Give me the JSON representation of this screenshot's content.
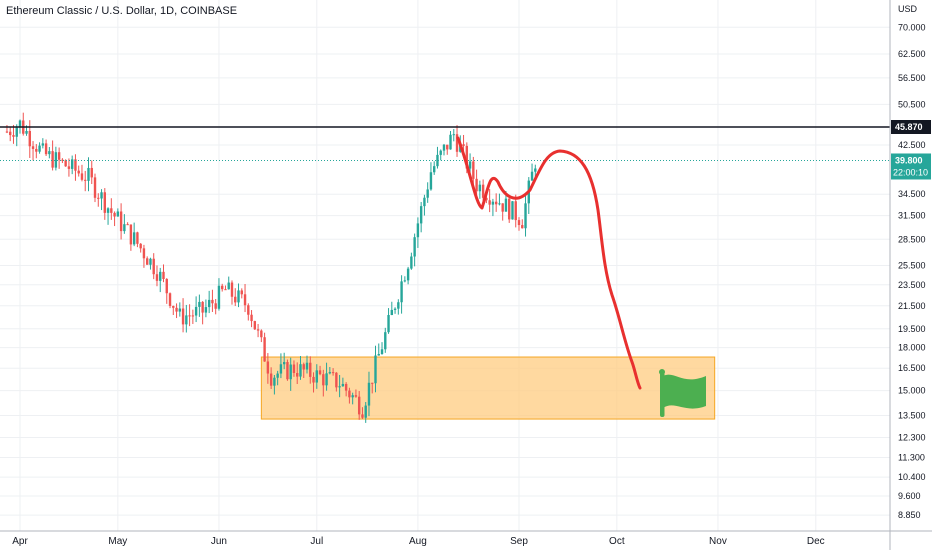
{
  "header": {
    "title": "Ethereum Classic / U.S. Dollar, 1D, COINBASE"
  },
  "chart_data": {
    "type": "candlestick",
    "title": "Ethereum Classic / U.S. Dollar, 1D, COINBASE",
    "currency": "USD",
    "scale": "log",
    "ylim": [
      8.2,
      75
    ],
    "y_ticks": [
      "70.000",
      "62.500",
      "56.500",
      "50.500",
      "42.500",
      "34.500",
      "31.500",
      "28.500",
      "25.500",
      "23.500",
      "21.500",
      "19.500",
      "18.000",
      "16.500",
      "15.000",
      "13.500",
      "12.300",
      "11.300",
      "10.400",
      "9.600",
      "8.850"
    ],
    "x_ticks": [
      "Apr",
      "May",
      "Jun",
      "Jul",
      "Aug",
      "Sep",
      "Oct",
      "Nov",
      "Dec"
    ],
    "resistance_level": {
      "value": 45.87,
      "label": "45.870"
    },
    "last_price": {
      "value": 39.8,
      "label": "39.800",
      "countdown": "22:00:10"
    },
    "colors": {
      "up": "#26a69a",
      "down": "#ef5350",
      "projection": "#e8302f",
      "zone_fill": "#ffcc80",
      "zone_border": "#f5a623",
      "flag": "#4caf50",
      "resistance": "#131722",
      "badge": "#26a69a"
    },
    "demand_zone": {
      "low": 13.3,
      "high": 17.3,
      "from": "2021-06-14",
      "to": "2021-10-31"
    },
    "candles_approx_close": [
      [
        "2021-03-28",
        45.0
      ],
      [
        "2021-04-01",
        46.5
      ],
      [
        "2021-04-08",
        41.0
      ],
      [
        "2021-04-15",
        39.0
      ],
      [
        "2021-04-22",
        37.0
      ],
      [
        "2021-04-29",
        32.0
      ],
      [
        "2021-05-06",
        28.5
      ],
      [
        "2021-05-13",
        25.0
      ],
      [
        "2021-05-20",
        20.5
      ],
      [
        "2021-05-27",
        21.0
      ],
      [
        "2021-06-03",
        23.0
      ],
      [
        "2021-06-10",
        21.5
      ],
      [
        "2021-06-17",
        16.0
      ],
      [
        "2021-06-24",
        16.5
      ],
      [
        "2021-07-01",
        16.0
      ],
      [
        "2021-07-08",
        15.5
      ],
      [
        "2021-07-15",
        14.0
      ],
      [
        "2021-07-22",
        19.0
      ],
      [
        "2021-07-29",
        26.0
      ],
      [
        "2021-08-05",
        38.0
      ],
      [
        "2021-08-12",
        44.5
      ],
      [
        "2021-08-19",
        36.0
      ],
      [
        "2021-08-26",
        33.5
      ],
      [
        "2021-09-02",
        31.0
      ],
      [
        "2021-09-06",
        39.8
      ]
    ]
  }
}
